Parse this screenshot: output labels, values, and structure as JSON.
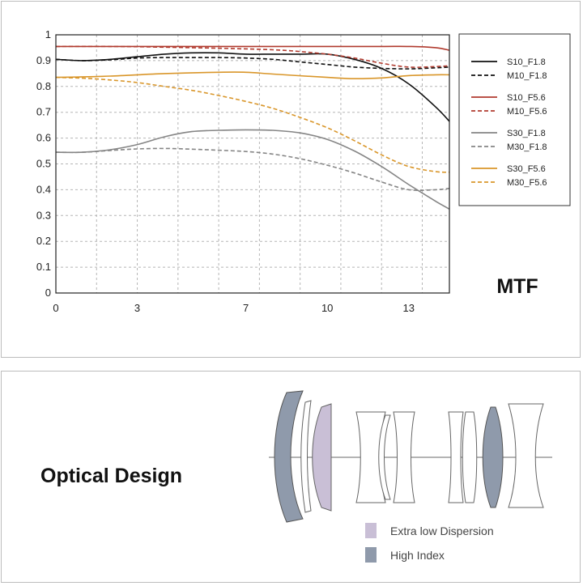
{
  "chart_data": {
    "type": "line",
    "title": "MTF",
    "xlabel": "",
    "ylabel": "",
    "xlim": [
      0,
      14.5
    ],
    "ylim": [
      0,
      1
    ],
    "xticks": [
      "0",
      "3",
      "7",
      "10",
      "13"
    ],
    "xtick_values": [
      0,
      3,
      7,
      10,
      13
    ],
    "yticks": [
      "0",
      "0.1",
      "0.2",
      "0.3",
      "0.4",
      "0.5",
      "0.6",
      "0.7",
      "0.8",
      "0.9",
      "1"
    ],
    "grid": true,
    "legend_position": "right",
    "series": [
      {
        "name": "S10_F1.8",
        "color": "#111111",
        "dash": false,
        "x": [
          0,
          1,
          2,
          3,
          4,
          5,
          6,
          7,
          8,
          9,
          10,
          11,
          12,
          13,
          14,
          14.5
        ],
        "y": [
          0.905,
          0.9,
          0.905,
          0.915,
          0.925,
          0.93,
          0.93,
          0.925,
          0.925,
          0.925,
          0.925,
          0.905,
          0.87,
          0.81,
          0.72,
          0.665
        ]
      },
      {
        "name": "M10_F1.8",
        "color": "#111111",
        "dash": true,
        "x": [
          0,
          1,
          2,
          3,
          4,
          5,
          6,
          7,
          8,
          9,
          10,
          11,
          12,
          13,
          14,
          14.5
        ],
        "y": [
          0.905,
          0.9,
          0.903,
          0.91,
          0.912,
          0.912,
          0.912,
          0.91,
          0.905,
          0.895,
          0.885,
          0.875,
          0.87,
          0.868,
          0.872,
          0.875
        ]
      },
      {
        "name": "S10_F5.6",
        "color": "#b03a2e",
        "dash": false,
        "x": [
          0,
          2,
          4,
          6,
          8,
          10,
          12,
          13,
          14,
          14.5
        ],
        "y": [
          0.955,
          0.955,
          0.955,
          0.955,
          0.955,
          0.955,
          0.955,
          0.955,
          0.95,
          0.94
        ]
      },
      {
        "name": "M10_F5.6",
        "color": "#b03a2e",
        "dash": true,
        "x": [
          0,
          2,
          4,
          6,
          8,
          9,
          10,
          11,
          12,
          13,
          14,
          14.5
        ],
        "y": [
          0.955,
          0.955,
          0.952,
          0.948,
          0.942,
          0.935,
          0.925,
          0.91,
          0.89,
          0.875,
          0.877,
          0.88
        ]
      },
      {
        "name": "S30_F1.8",
        "color": "#858585",
        "dash": false,
        "x": [
          0,
          1,
          2,
          3,
          4,
          5,
          6,
          7,
          8,
          9,
          10,
          11,
          12,
          13,
          14,
          14.5
        ],
        "y": [
          0.545,
          0.545,
          0.555,
          0.575,
          0.605,
          0.625,
          0.63,
          0.632,
          0.63,
          0.62,
          0.595,
          0.55,
          0.49,
          0.42,
          0.355,
          0.325
        ]
      },
      {
        "name": "M30_F1.8",
        "color": "#858585",
        "dash": true,
        "x": [
          0,
          1,
          2,
          3,
          4,
          5,
          6,
          7,
          8,
          9,
          10,
          11,
          12,
          13,
          14,
          14.5
        ],
        "y": [
          0.545,
          0.545,
          0.552,
          0.558,
          0.56,
          0.557,
          0.553,
          0.548,
          0.538,
          0.52,
          0.495,
          0.465,
          0.43,
          0.4,
          0.4,
          0.405
        ]
      },
      {
        "name": "S30_F5.6",
        "color": "#d9962a",
        "dash": false,
        "x": [
          0,
          2,
          4,
          6,
          7,
          8,
          10,
          11,
          12,
          13,
          14,
          14.5
        ],
        "y": [
          0.835,
          0.84,
          0.85,
          0.855,
          0.855,
          0.848,
          0.835,
          0.83,
          0.833,
          0.842,
          0.845,
          0.845
        ]
      },
      {
        "name": "M30_F5.6",
        "color": "#d9962a",
        "dash": true,
        "x": [
          0,
          1,
          2,
          3,
          4,
          5,
          6,
          7,
          8,
          9,
          10,
          11,
          12,
          13,
          14,
          14.5
        ],
        "y": [
          0.835,
          0.832,
          0.825,
          0.815,
          0.8,
          0.785,
          0.765,
          0.742,
          0.715,
          0.68,
          0.64,
          0.59,
          0.535,
          0.49,
          0.47,
          0.468
        ]
      }
    ]
  },
  "optical": {
    "title": "Optical Design",
    "legend": [
      {
        "label": "Extra low Dispersion",
        "color": "#c9bfd6"
      },
      {
        "label": "High Index",
        "color": "#8f9aab"
      }
    ]
  }
}
